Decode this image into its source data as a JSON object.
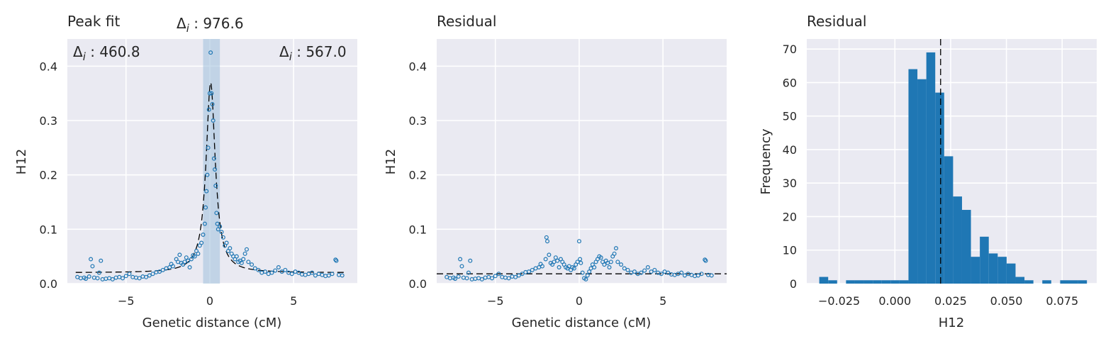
{
  "colors": {
    "marker": "#1f77b4",
    "bar": "#1f77b4",
    "fit": "#000000",
    "band": "#9ebfdd",
    "background": "#eaeaf2"
  },
  "chart_data": [
    {
      "type": "scatter",
      "title": "Peak fit",
      "xlabel": "Genetic distance (cM)",
      "ylabel": "H12",
      "xlim": [
        -8.5,
        8.8
      ],
      "ylim": [
        0,
        0.45
      ],
      "xticks": [
        "−5",
        "0",
        "5"
      ],
      "yticks": [
        "0.0",
        "0.1",
        "0.2",
        "0.3",
        "0.4"
      ],
      "annotations": {
        "left": "Δi : 460.8",
        "center": "Δi : 976.6",
        "right": "Δi : 567.0",
        "delta_symbol": "Δ",
        "index": "i",
        "left_value": " : 460.8",
        "center_value": " : 976.6",
        "right_value": " : 567.0"
      },
      "highlight_band": [
        -0.4,
        0.6
      ],
      "fit_baseline": 0.02,
      "fit_peak": {
        "x": 0.05,
        "height": 0.35,
        "width": 0.33
      },
      "points": [
        [
          -7.9,
          0.012
        ],
        [
          -7.7,
          0.01
        ],
        [
          -7.5,
          0.011
        ],
        [
          -7.4,
          0.009
        ],
        [
          -7.2,
          0.013
        ],
        [
          -7.1,
          0.045
        ],
        [
          -7.0,
          0.032
        ],
        [
          -6.9,
          0.011
        ],
        [
          -6.7,
          0.01
        ],
        [
          -6.6,
          0.02
        ],
        [
          -6.5,
          0.042
        ],
        [
          -6.4,
          0.008
        ],
        [
          -6.2,
          0.009
        ],
        [
          -6.0,
          0.01
        ],
        [
          -5.8,
          0.008
        ],
        [
          -5.6,
          0.011
        ],
        [
          -5.4,
          0.012
        ],
        [
          -5.2,
          0.01
        ],
        [
          -5.0,
          0.014
        ],
        [
          -4.8,
          0.018
        ],
        [
          -4.6,
          0.012
        ],
        [
          -4.4,
          0.011
        ],
        [
          -4.2,
          0.01
        ],
        [
          -4.0,
          0.013
        ],
        [
          -3.8,
          0.012
        ],
        [
          -3.6,
          0.015
        ],
        [
          -3.4,
          0.018
        ],
        [
          -3.2,
          0.021
        ],
        [
          -3.0,
          0.022
        ],
        [
          -2.8,
          0.025
        ],
        [
          -2.6,
          0.028
        ],
        [
          -2.4,
          0.03
        ],
        [
          -2.3,
          0.036
        ],
        [
          -2.2,
          0.032
        ],
        [
          -2.0,
          0.045
        ],
        [
          -1.9,
          0.04
        ],
        [
          -1.8,
          0.053
        ],
        [
          -1.7,
          0.038
        ],
        [
          -1.6,
          0.035
        ],
        [
          -1.5,
          0.04
        ],
        [
          -1.4,
          0.048
        ],
        [
          -1.3,
          0.042
        ],
        [
          -1.2,
          0.03
        ],
        [
          -1.1,
          0.045
        ],
        [
          -1.0,
          0.052
        ],
        [
          -0.9,
          0.05
        ],
        [
          -0.8,
          0.06
        ],
        [
          -0.7,
          0.055
        ],
        [
          -0.6,
          0.07
        ],
        [
          -0.5,
          0.075
        ],
        [
          -0.4,
          0.09
        ],
        [
          -0.3,
          0.11
        ],
        [
          -0.25,
          0.14
        ],
        [
          -0.2,
          0.17
        ],
        [
          -0.15,
          0.2
        ],
        [
          -0.1,
          0.25
        ],
        [
          -0.05,
          0.32
        ],
        [
          0.0,
          0.35
        ],
        [
          0.05,
          0.425
        ],
        [
          0.1,
          0.35
        ],
        [
          0.15,
          0.33
        ],
        [
          0.2,
          0.3
        ],
        [
          0.25,
          0.23
        ],
        [
          0.3,
          0.21
        ],
        [
          0.35,
          0.18
        ],
        [
          0.4,
          0.13
        ],
        [
          0.45,
          0.11
        ],
        [
          0.5,
          0.1
        ],
        [
          0.6,
          0.105
        ],
        [
          0.7,
          0.095
        ],
        [
          0.8,
          0.085
        ],
        [
          0.9,
          0.07
        ],
        [
          1.0,
          0.075
        ],
        [
          1.1,
          0.06
        ],
        [
          1.2,
          0.065
        ],
        [
          1.3,
          0.055
        ],
        [
          1.4,
          0.05
        ],
        [
          1.5,
          0.045
        ],
        [
          1.6,
          0.05
        ],
        [
          1.7,
          0.04
        ],
        [
          1.8,
          0.042
        ],
        [
          1.9,
          0.038
        ],
        [
          2.0,
          0.045
        ],
        [
          2.1,
          0.055
        ],
        [
          2.2,
          0.063
        ],
        [
          2.3,
          0.04
        ],
        [
          2.5,
          0.035
        ],
        [
          2.7,
          0.028
        ],
        [
          2.9,
          0.025
        ],
        [
          3.1,
          0.02
        ],
        [
          3.3,
          0.022
        ],
        [
          3.5,
          0.018
        ],
        [
          3.7,
          0.02
        ],
        [
          3.9,
          0.024
        ],
        [
          4.1,
          0.03
        ],
        [
          4.3,
          0.022
        ],
        [
          4.5,
          0.025
        ],
        [
          4.7,
          0.02
        ],
        [
          4.9,
          0.018
        ],
        [
          5.1,
          0.022
        ],
        [
          5.3,
          0.02
        ],
        [
          5.5,
          0.017
        ],
        [
          5.7,
          0.016
        ],
        [
          5.9,
          0.018
        ],
        [
          6.1,
          0.02
        ],
        [
          6.3,
          0.015
        ],
        [
          6.5,
          0.018
        ],
        [
          6.7,
          0.016
        ],
        [
          6.9,
          0.014
        ],
        [
          7.1,
          0.015
        ],
        [
          7.3,
          0.018
        ],
        [
          7.5,
          0.044
        ],
        [
          7.55,
          0.042
        ],
        [
          7.7,
          0.016
        ],
        [
          7.9,
          0.015
        ]
      ]
    },
    {
      "type": "scatter",
      "title": "Residual",
      "xlabel": "Genetic distance (cM)",
      "ylabel": "H12",
      "xlim": [
        -8.5,
        8.8
      ],
      "ylim": [
        0,
        0.45
      ],
      "xticks": [
        "−5",
        "0",
        "5"
      ],
      "yticks": [
        "0.0",
        "0.1",
        "0.2",
        "0.3",
        "0.4"
      ],
      "baseline": 0.018,
      "points": [
        [
          -7.9,
          0.012
        ],
        [
          -7.7,
          0.01
        ],
        [
          -7.5,
          0.011
        ],
        [
          -7.4,
          0.009
        ],
        [
          -7.2,
          0.013
        ],
        [
          -7.1,
          0.045
        ],
        [
          -7.0,
          0.032
        ],
        [
          -6.9,
          0.011
        ],
        [
          -6.7,
          0.01
        ],
        [
          -6.6,
          0.02
        ],
        [
          -6.5,
          0.042
        ],
        [
          -6.4,
          0.008
        ],
        [
          -6.2,
          0.009
        ],
        [
          -6.0,
          0.01
        ],
        [
          -5.8,
          0.008
        ],
        [
          -5.6,
          0.011
        ],
        [
          -5.4,
          0.012
        ],
        [
          -5.2,
          0.01
        ],
        [
          -5.0,
          0.014
        ],
        [
          -4.8,
          0.018
        ],
        [
          -4.6,
          0.012
        ],
        [
          -4.4,
          0.011
        ],
        [
          -4.2,
          0.01
        ],
        [
          -4.0,
          0.013
        ],
        [
          -3.8,
          0.012
        ],
        [
          -3.6,
          0.015
        ],
        [
          -3.4,
          0.018
        ],
        [
          -3.2,
          0.021
        ],
        [
          -3.0,
          0.022
        ],
        [
          -2.8,
          0.025
        ],
        [
          -2.6,
          0.028
        ],
        [
          -2.4,
          0.03
        ],
        [
          -2.3,
          0.036
        ],
        [
          -2.2,
          0.032
        ],
        [
          -2.0,
          0.045
        ],
        [
          -1.95,
          0.085
        ],
        [
          -1.9,
          0.078
        ],
        [
          -1.8,
          0.053
        ],
        [
          -1.7,
          0.038
        ],
        [
          -1.6,
          0.035
        ],
        [
          -1.5,
          0.04
        ],
        [
          -1.4,
          0.048
        ],
        [
          -1.3,
          0.042
        ],
        [
          -1.2,
          0.03
        ],
        [
          -1.1,
          0.045
        ],
        [
          -1.0,
          0.04
        ],
        [
          -0.9,
          0.035
        ],
        [
          -0.8,
          0.03
        ],
        [
          -0.7,
          0.028
        ],
        [
          -0.6,
          0.032
        ],
        [
          -0.5,
          0.025
        ],
        [
          -0.4,
          0.03
        ],
        [
          -0.3,
          0.028
        ],
        [
          -0.2,
          0.035
        ],
        [
          -0.1,
          0.04
        ],
        [
          0.0,
          0.078
        ],
        [
          0.05,
          0.045
        ],
        [
          0.1,
          0.038
        ],
        [
          0.2,
          0.02
        ],
        [
          0.3,
          0.01
        ],
        [
          0.4,
          0.008
        ],
        [
          0.5,
          0.015
        ],
        [
          0.6,
          0.022
        ],
        [
          0.7,
          0.028
        ],
        [
          0.8,
          0.035
        ],
        [
          0.9,
          0.03
        ],
        [
          1.0,
          0.04
        ],
        [
          1.1,
          0.045
        ],
        [
          1.2,
          0.05
        ],
        [
          1.3,
          0.048
        ],
        [
          1.4,
          0.04
        ],
        [
          1.5,
          0.035
        ],
        [
          1.6,
          0.042
        ],
        [
          1.7,
          0.038
        ],
        [
          1.8,
          0.03
        ],
        [
          1.9,
          0.04
        ],
        [
          2.0,
          0.05
        ],
        [
          2.1,
          0.055
        ],
        [
          2.2,
          0.065
        ],
        [
          2.3,
          0.04
        ],
        [
          2.5,
          0.035
        ],
        [
          2.7,
          0.028
        ],
        [
          2.9,
          0.025
        ],
        [
          3.1,
          0.02
        ],
        [
          3.3,
          0.022
        ],
        [
          3.5,
          0.018
        ],
        [
          3.7,
          0.02
        ],
        [
          3.9,
          0.024
        ],
        [
          4.1,
          0.03
        ],
        [
          4.3,
          0.022
        ],
        [
          4.5,
          0.025
        ],
        [
          4.7,
          0.02
        ],
        [
          4.9,
          0.018
        ],
        [
          5.1,
          0.022
        ],
        [
          5.3,
          0.02
        ],
        [
          5.5,
          0.017
        ],
        [
          5.7,
          0.016
        ],
        [
          5.9,
          0.018
        ],
        [
          6.1,
          0.02
        ],
        [
          6.3,
          0.015
        ],
        [
          6.5,
          0.018
        ],
        [
          6.7,
          0.016
        ],
        [
          6.9,
          0.014
        ],
        [
          7.1,
          0.015
        ],
        [
          7.3,
          0.018
        ],
        [
          7.5,
          0.044
        ],
        [
          7.55,
          0.042
        ],
        [
          7.7,
          0.016
        ],
        [
          7.9,
          0.015
        ]
      ]
    },
    {
      "type": "bar",
      "title": "Residual",
      "xlabel": "H12",
      "ylabel": "Frequency",
      "xlim": [
        -0.0395,
        0.0905
      ],
      "ylim": [
        0,
        73
      ],
      "xticks": [
        "−0.025",
        "0.000",
        "0.025",
        "0.050",
        "0.075"
      ],
      "xtick_values": [
        -0.025,
        0.0,
        0.025,
        0.05,
        0.075
      ],
      "yticks": [
        "0",
        "10",
        "20",
        "30",
        "40",
        "50",
        "60",
        "70"
      ],
      "vline": 0.0205,
      "bin_width": 0.004,
      "bins": [
        [
          -0.0339,
          2
        ],
        [
          -0.0299,
          1
        ],
        [
          -0.0259,
          0
        ],
        [
          -0.0219,
          1
        ],
        [
          -0.0179,
          1
        ],
        [
          -0.0139,
          1
        ],
        [
          -0.0099,
          1
        ],
        [
          -0.0059,
          1
        ],
        [
          -0.0019,
          1
        ],
        [
          0.0021,
          1
        ],
        [
          0.0061,
          64
        ],
        [
          0.0101,
          61
        ],
        [
          0.0141,
          69
        ],
        [
          0.0181,
          57
        ],
        [
          0.0221,
          38
        ],
        [
          0.0261,
          26
        ],
        [
          0.0301,
          22
        ],
        [
          0.0341,
          8
        ],
        [
          0.0381,
          14
        ],
        [
          0.0421,
          9
        ],
        [
          0.0461,
          8
        ],
        [
          0.0501,
          6
        ],
        [
          0.0541,
          2
        ],
        [
          0.0581,
          1
        ],
        [
          0.0621,
          0
        ],
        [
          0.0661,
          1
        ],
        [
          0.0701,
          0
        ],
        [
          0.0741,
          1
        ],
        [
          0.0781,
          0
        ],
        [
          0.0781,
          1
        ],
        [
          0.0821,
          1
        ]
      ]
    }
  ]
}
